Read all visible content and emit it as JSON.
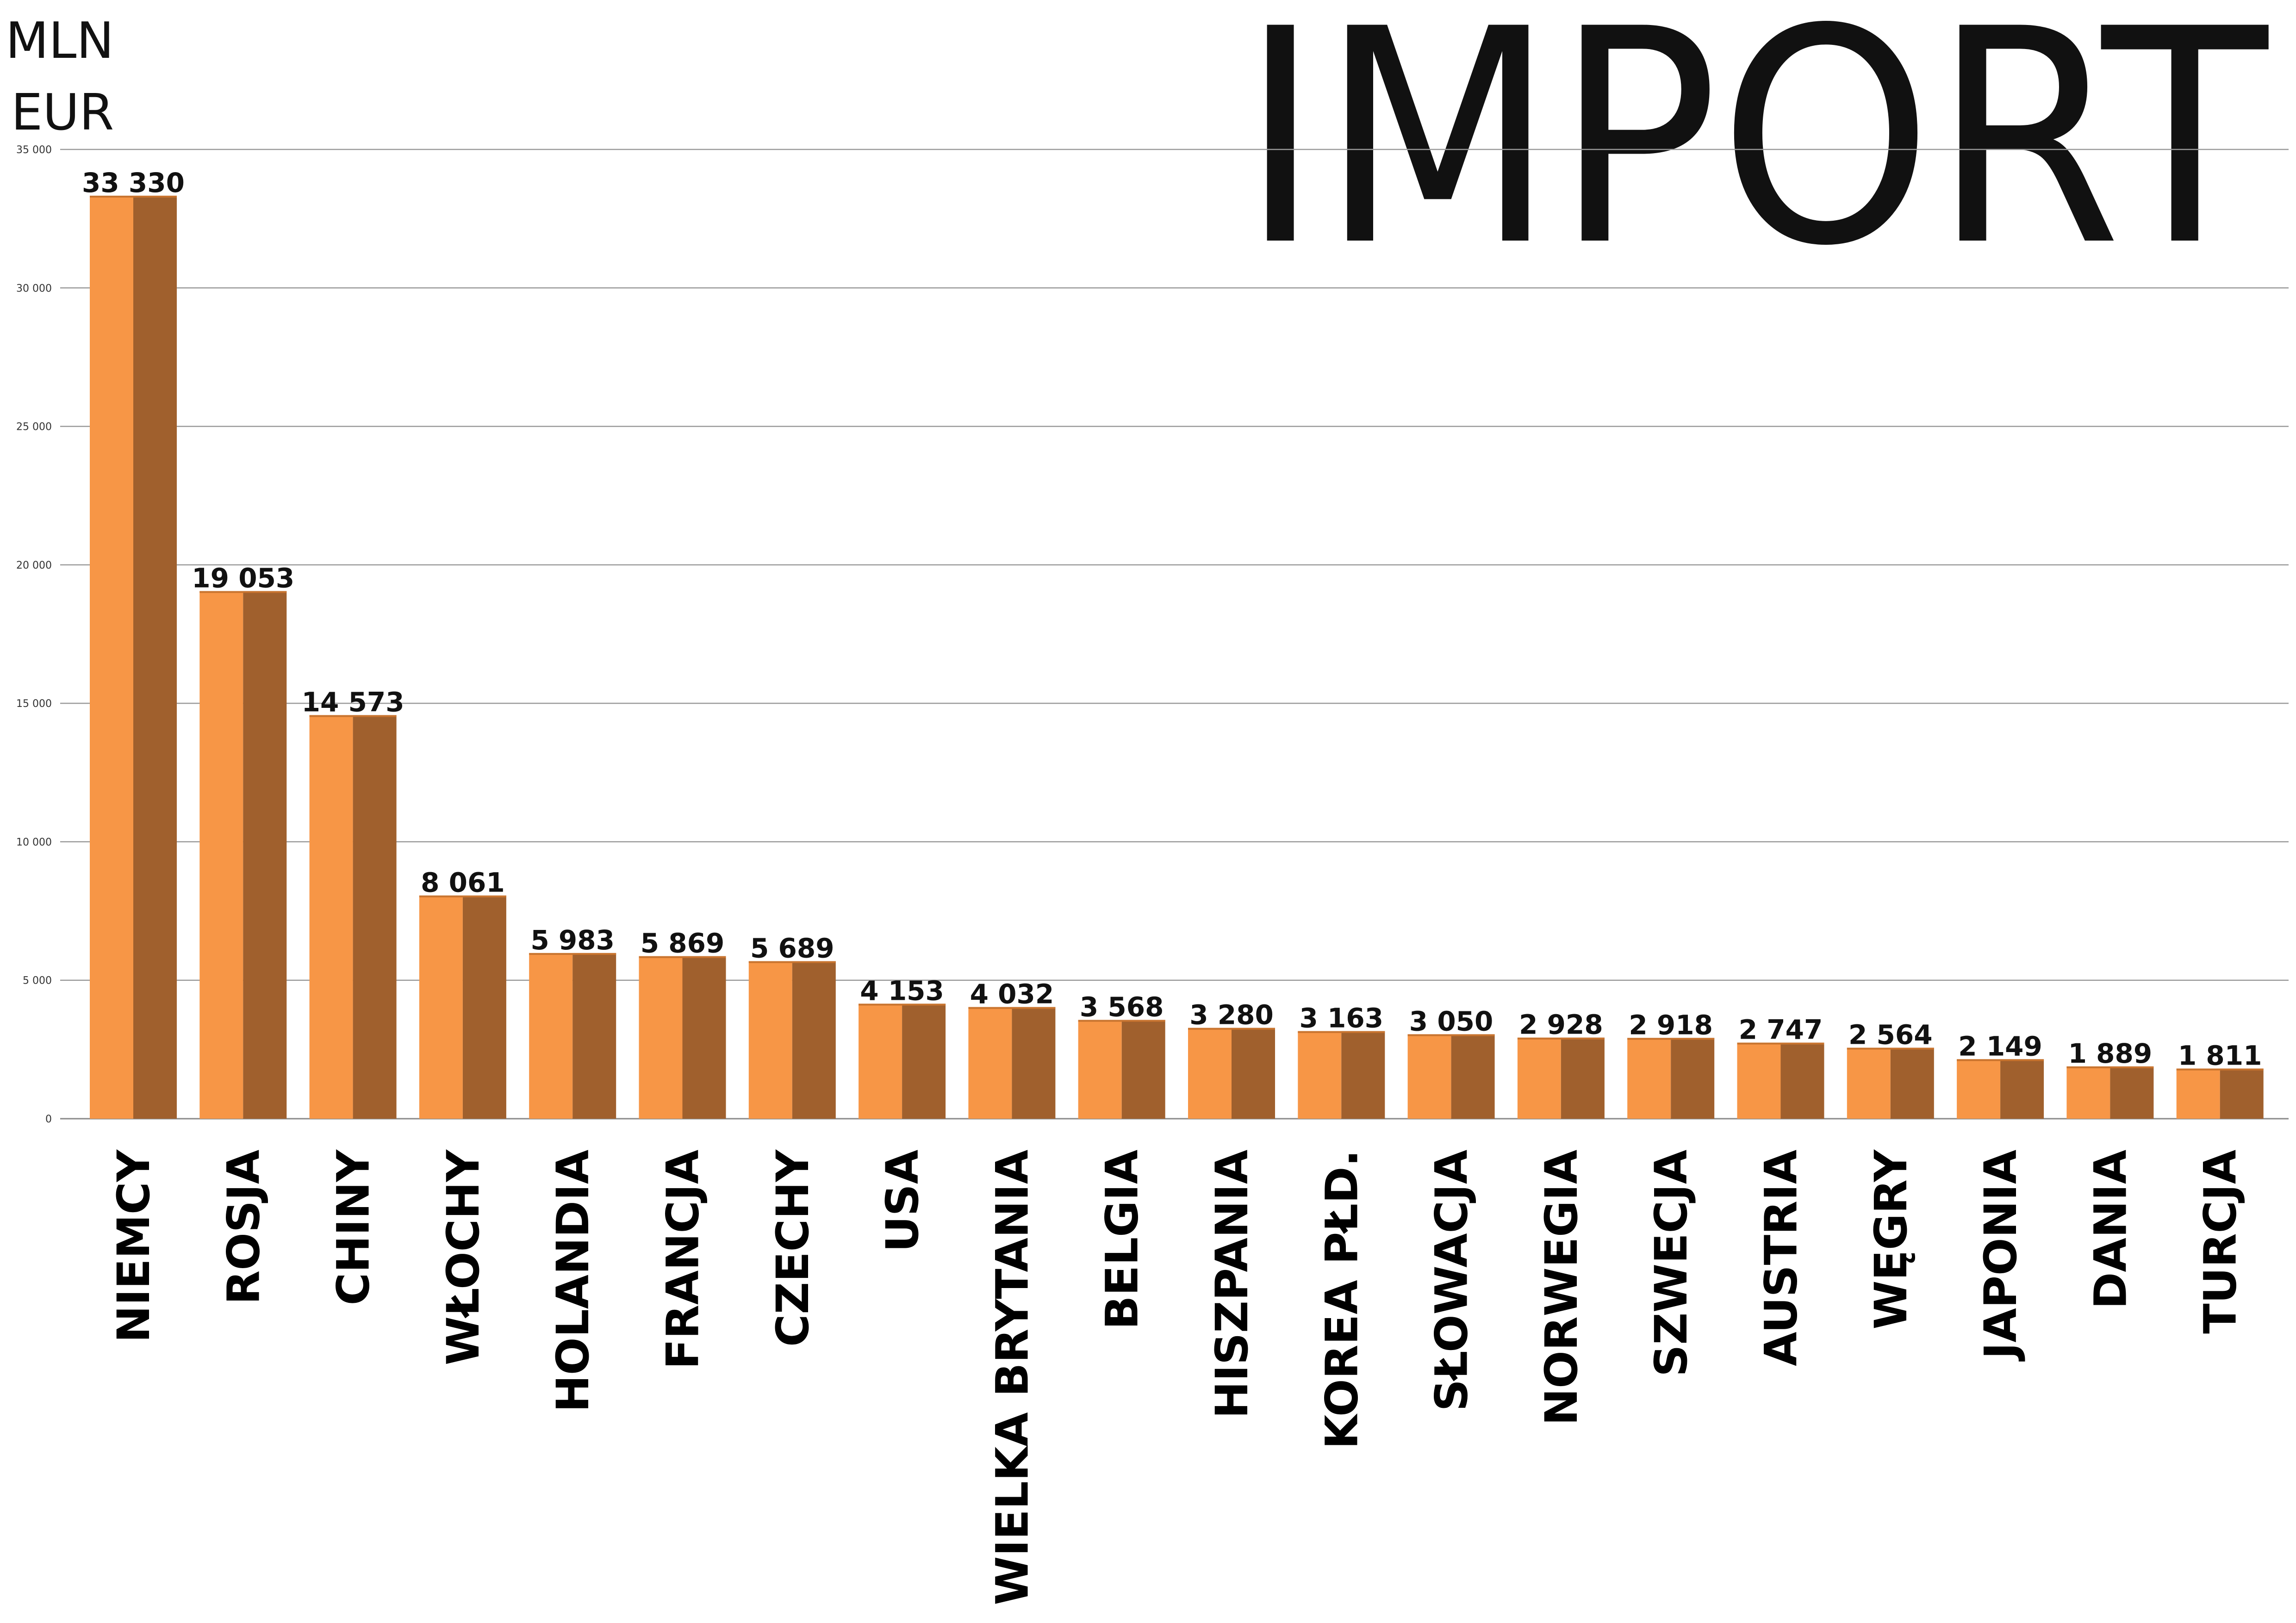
{
  "chart_data": {
    "type": "bar",
    "title": "IMPORT",
    "unit": [
      "MLN",
      "EUR"
    ],
    "ylim": [
      0,
      35000
    ],
    "yticks": [
      0,
      5000,
      10000,
      15000,
      20000,
      25000,
      30000,
      35000
    ],
    "ytick_labels": [
      "0",
      "5 000",
      "10 000",
      "15 000",
      "20 000",
      "25 000",
      "30 000",
      "35 000"
    ],
    "grid": true,
    "categories": [
      "Niemcy",
      "Rosja",
      "Chiny",
      "Włochy",
      "Holandia",
      "Francja",
      "Czechy",
      "USA",
      "Wielka Brytania",
      "Belgia",
      "Hiszpania",
      "Korea Płd.",
      "Słowacja",
      "Norwegia",
      "Szwecja",
      "Austria",
      "Węgry",
      "Japonia",
      "Dania",
      "Turcja"
    ],
    "values": [
      33330,
      19053,
      14573,
      8061,
      5983,
      5869,
      5689,
      4153,
      4032,
      3568,
      3280,
      3163,
      3050,
      2928,
      2918,
      2747,
      2564,
      2149,
      1889,
      1811
    ],
    "value_labels": [
      "33 330",
      "19 053",
      "14 573",
      "8 061",
      "5 983",
      "5 869",
      "5 689",
      "4 153",
      "4 032",
      "3 568",
      "3 280",
      "3 163",
      "3 050",
      "2 928",
      "2 918",
      "2 747",
      "2 564",
      "2 149",
      "1 889",
      "1 811"
    ],
    "colors": {
      "bar_light": "#F79646",
      "bar_dark": "#A0602D"
    }
  }
}
